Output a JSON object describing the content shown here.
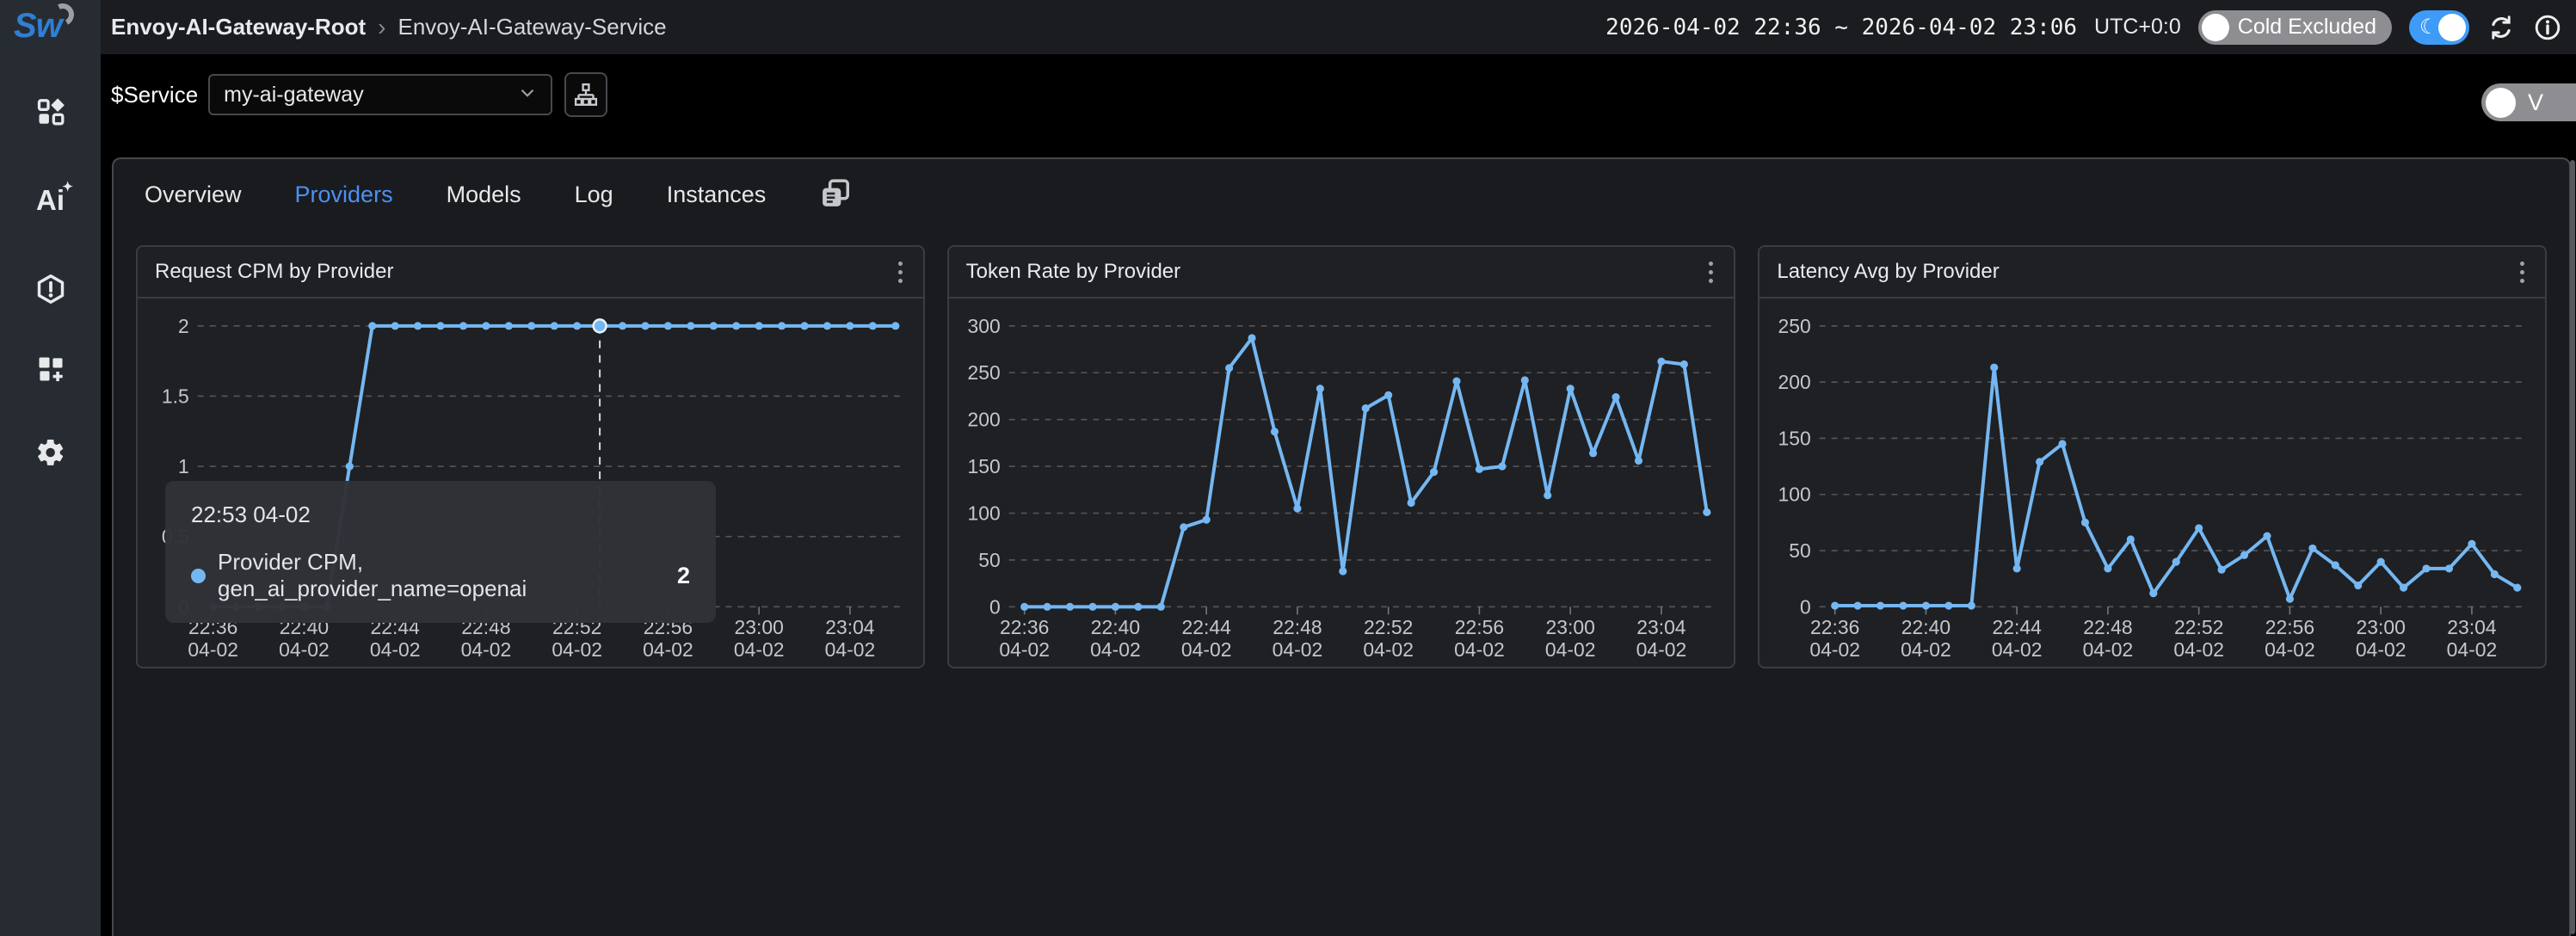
{
  "topbar": {
    "breadcrumb_root": "Envoy-AI-Gateway-Root",
    "breadcrumb_sep": "›",
    "breadcrumb_leaf": "Envoy-AI-Gateway-Service",
    "time_range": "2026-04-02 22:36 ~ 2026-04-02 23:06",
    "timezone": "UTC+0:0",
    "cold_toggle_label": "Cold Excluded",
    "icons": {
      "moon": "☾",
      "refresh": "refresh-icon",
      "info": "info-icon"
    }
  },
  "sidebar": {
    "logo": "Sw",
    "items": [
      {
        "name": "marketplace"
      },
      {
        "name": "ai-assistant"
      },
      {
        "name": "alerting"
      },
      {
        "name": "widgets"
      },
      {
        "name": "settings"
      }
    ],
    "ai_glyph": "Ai",
    "ai_spark": "✦"
  },
  "service_bar": {
    "label": "$Service",
    "selected_value": "my-ai-gateway",
    "view_toggle_label": "V"
  },
  "tabs": [
    {
      "label": "Overview",
      "active": false
    },
    {
      "label": "Providers",
      "active": true
    },
    {
      "label": "Models",
      "active": false
    },
    {
      "label": "Log",
      "active": false
    },
    {
      "label": "Instances",
      "active": false
    }
  ],
  "tooltip": {
    "time": "22:53 04-02",
    "series": "Provider CPM, gen_ai_provider_name=openai",
    "value": "2"
  },
  "hover": {
    "chart_index": 0,
    "point_index": 17
  },
  "colors": {
    "accent_blue": "#4a90f5",
    "chart_line": "#74b7f2",
    "logo_blue": "#2f7fd4",
    "toggle_blue": "#3f9bf8",
    "toggle_gray": "#8e8e92",
    "gridline": "#54565b",
    "axis_text": "#c3c7cd"
  },
  "chart_data": [
    {
      "type": "line",
      "title": "Request CPM by Provider",
      "xlabel": "",
      "ylabel": "",
      "x_start": "22:36",
      "x_end": "23:06",
      "x_tick_labels": [
        "22:36",
        "22:40",
        "22:44",
        "22:48",
        "22:52",
        "22:56",
        "23:00",
        "23:04"
      ],
      "x_tick_date": "04-02",
      "y_ticks": [
        0,
        0.5,
        1,
        1.5,
        2
      ],
      "ylim": [
        0,
        2
      ],
      "grid": true,
      "legend": false,
      "series": [
        {
          "name": "Provider CPM, gen_ai_provider_name=openai",
          "values": [
            0,
            0,
            0,
            0,
            0,
            0,
            1,
            2,
            2,
            2,
            2,
            2,
            2,
            2,
            2,
            2,
            2,
            2,
            2,
            2,
            2,
            2,
            2,
            2,
            2,
            2,
            2,
            2,
            2,
            2,
            2
          ]
        }
      ]
    },
    {
      "type": "line",
      "title": "Token Rate by Provider",
      "xlabel": "",
      "ylabel": "",
      "x_start": "22:36",
      "x_end": "23:06",
      "x_tick_labels": [
        "22:36",
        "22:40",
        "22:44",
        "22:48",
        "22:52",
        "22:56",
        "23:00",
        "23:04"
      ],
      "x_tick_date": "04-02",
      "y_ticks": [
        0,
        50,
        100,
        150,
        200,
        250,
        300
      ],
      "ylim": [
        0,
        300
      ],
      "grid": true,
      "legend": false,
      "series": [
        {
          "name": "",
          "values": [
            0,
            0,
            0,
            0,
            0,
            0,
            0,
            85,
            93,
            255,
            287,
            187,
            105,
            233,
            38,
            212,
            226,
            111,
            144,
            241,
            147,
            150,
            242,
            119,
            233,
            164,
            224,
            156,
            262,
            259,
            101
          ]
        }
      ]
    },
    {
      "type": "line",
      "title": "Latency Avg by Provider",
      "xlabel": "",
      "ylabel": "",
      "x_start": "22:36",
      "x_end": "23:06",
      "x_tick_labels": [
        "22:36",
        "22:40",
        "22:44",
        "22:48",
        "22:52",
        "22:56",
        "23:00",
        "23:04"
      ],
      "x_tick_date": "04-02",
      "y_ticks": [
        0,
        50,
        100,
        150,
        200,
        250
      ],
      "ylim": [
        0,
        250
      ],
      "grid": true,
      "legend": false,
      "series": [
        {
          "name": "",
          "values": [
            1,
            1,
            1,
            1,
            1,
            1,
            1,
            213,
            34,
            129,
            145,
            75,
            34,
            60,
            12,
            40,
            70,
            33,
            46,
            63,
            7,
            52,
            37,
            19,
            40,
            17,
            34,
            34,
            56,
            29,
            17
          ]
        }
      ]
    }
  ]
}
